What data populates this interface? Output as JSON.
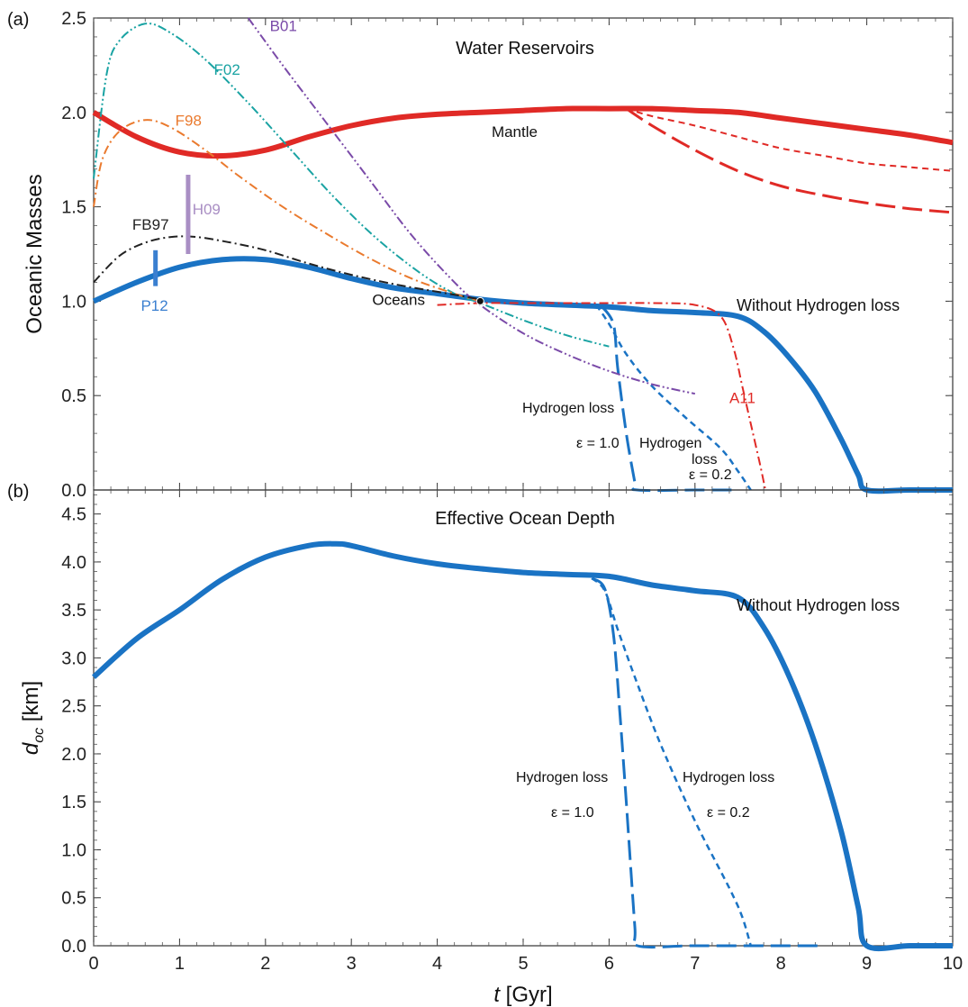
{
  "chart_data": [
    {
      "type": "line",
      "panel_label": "(a)",
      "title": "Water Reservoirs",
      "xlabel": "",
      "ylabel": "Oceanic Masses",
      "xlim": [
        0,
        10
      ],
      "ylim": [
        0,
        2.5
      ],
      "x_ticks": [
        "0",
        "1",
        "2",
        "3",
        "4",
        "5",
        "6",
        "7",
        "8",
        "9",
        "10"
      ],
      "y_ticks": [
        "0.0",
        "0.5",
        "1.0",
        "1.5",
        "2.0",
        "2.5"
      ],
      "grid": false,
      "series": [
        {
          "name": "Mantle",
          "color": "#e02a26",
          "style": "solid",
          "width": 6,
          "x": [
            0,
            0.5,
            1.0,
            1.5,
            2.0,
            2.5,
            3.0,
            3.5,
            4.0,
            4.5,
            5.0,
            5.5,
            6.0,
            6.5,
            7.0,
            7.5,
            8.0,
            8.5,
            9.0,
            9.5,
            10.0
          ],
          "y": [
            2.0,
            1.87,
            1.79,
            1.77,
            1.8,
            1.87,
            1.93,
            1.97,
            1.99,
            2.0,
            2.01,
            2.02,
            2.02,
            2.02,
            2.01,
            2.0,
            1.97,
            1.94,
            1.91,
            1.88,
            1.84
          ]
        },
        {
          "name": "",
          "color": "#e02a26",
          "style": "short-dash",
          "width": 2,
          "x": [
            6.2,
            6.5,
            7.0,
            7.5,
            8.0,
            8.5,
            9.0,
            9.5,
            10.0
          ],
          "y": [
            2.02,
            1.98,
            1.93,
            1.87,
            1.81,
            1.77,
            1.73,
            1.71,
            1.69
          ]
        },
        {
          "name": "",
          "color": "#e02a26",
          "style": "long-dash",
          "width": 3,
          "x": [
            6.2,
            6.5,
            7.0,
            7.5,
            8.0,
            8.5,
            9.0,
            9.5,
            10.0
          ],
          "y": [
            2.02,
            1.93,
            1.8,
            1.69,
            1.61,
            1.56,
            1.52,
            1.49,
            1.47
          ]
        },
        {
          "name": "Oceans",
          "color": "#1a73c4",
          "style": "solid",
          "width": 6,
          "x": [
            0,
            0.5,
            1.0,
            1.5,
            2.0,
            2.5,
            3.0,
            3.5,
            4.0,
            4.5,
            5.0,
            5.5,
            6.0,
            6.5,
            7.0,
            7.5,
            7.8,
            8.1,
            8.4,
            8.7,
            8.9,
            9.0,
            9.5,
            10.0
          ],
          "y": [
            1.0,
            1.1,
            1.18,
            1.22,
            1.22,
            1.18,
            1.12,
            1.07,
            1.04,
            1.01,
            0.99,
            0.98,
            0.97,
            0.95,
            0.94,
            0.92,
            0.84,
            0.7,
            0.52,
            0.27,
            0.08,
            0.0,
            0.0,
            0.0
          ]
        },
        {
          "name": "",
          "color": "#1a73c4",
          "style": "long-dash",
          "width": 3,
          "x": [
            5.9,
            6.05,
            6.1,
            6.2,
            6.3,
            6.33,
            7.0,
            7.5
          ],
          "y": [
            0.98,
            0.88,
            0.65,
            0.3,
            0.04,
            0.0,
            0.0,
            0.0
          ]
        },
        {
          "name": "",
          "color": "#1a73c4",
          "style": "short-dash",
          "width": 2.5,
          "x": [
            5.85,
            6.0,
            6.2,
            6.5,
            6.9,
            7.3,
            7.5,
            7.65
          ],
          "y": [
            0.98,
            0.88,
            0.72,
            0.55,
            0.38,
            0.22,
            0.1,
            0.0
          ]
        },
        {
          "name": "B01",
          "color": "#7a4aa8",
          "style": "dash-dot-dot",
          "width": 2,
          "x": [
            1.8,
            2.2,
            2.7,
            3.2,
            3.7,
            4.2,
            4.5,
            5.0,
            5.5,
            6.0,
            6.5,
            7.0
          ],
          "y": [
            2.5,
            2.25,
            1.95,
            1.65,
            1.35,
            1.1,
            0.98,
            0.83,
            0.72,
            0.63,
            0.56,
            0.51
          ]
        },
        {
          "name": "F02",
          "color": "#1aa3a3",
          "style": "dash-dot-dot",
          "width": 2,
          "x": [
            0,
            0.15,
            0.3,
            0.6,
            0.9,
            1.3,
            1.8,
            2.3,
            2.8,
            3.3,
            3.8,
            4.2,
            4.5,
            5.0,
            5.5,
            6.0
          ],
          "y": [
            1.65,
            2.2,
            2.38,
            2.47,
            2.42,
            2.28,
            2.05,
            1.8,
            1.55,
            1.33,
            1.15,
            1.04,
            0.99,
            0.9,
            0.82,
            0.76
          ]
        },
        {
          "name": "F98",
          "color": "#ea7a2e",
          "style": "dash-dot",
          "width": 2,
          "x": [
            0,
            0.1,
            0.3,
            0.6,
            0.9,
            1.3,
            1.7,
            2.2,
            2.7,
            3.2,
            3.7,
            4.2,
            4.5
          ],
          "y": [
            1.5,
            1.75,
            1.9,
            1.96,
            1.92,
            1.8,
            1.66,
            1.5,
            1.36,
            1.23,
            1.12,
            1.04,
            1.0
          ]
        },
        {
          "name": "FB97",
          "color": "#222222",
          "style": "dash-dot",
          "width": 2,
          "x": [
            0,
            0.3,
            0.6,
            0.9,
            1.2,
            1.6,
            2.0,
            2.5,
            3.0,
            3.5,
            4.0,
            4.5
          ],
          "y": [
            1.1,
            1.24,
            1.31,
            1.34,
            1.34,
            1.31,
            1.27,
            1.2,
            1.14,
            1.09,
            1.05,
            1.01
          ]
        },
        {
          "name": "A11",
          "color": "#e02a26",
          "style": "dash-dot",
          "width": 2,
          "x": [
            4.0,
            4.5,
            5.0,
            5.5,
            6.0,
            6.5,
            7.0,
            7.3,
            7.45,
            7.55,
            7.65,
            7.75,
            7.82
          ],
          "y": [
            0.98,
            0.99,
            0.99,
            0.99,
            0.99,
            0.99,
            0.98,
            0.92,
            0.75,
            0.55,
            0.35,
            0.15,
            0.0
          ]
        }
      ],
      "bars": [
        {
          "name": "H09",
          "color": "#a98ec4",
          "x": 1.1,
          "y_range": [
            1.25,
            1.67
          ]
        },
        {
          "name": "P12",
          "color": "#3a7fd0",
          "x": 0.72,
          "y_range": [
            1.08,
            1.27
          ]
        }
      ],
      "annotations": {
        "marker": {
          "x": 4.5,
          "y": 1.0
        },
        "without_h_loss": "Without Hydrogen loss",
        "hloss_left": "Hydrogen loss",
        "eps_left": "ε = 1.0",
        "hloss_right_1": "Hydrogen",
        "hloss_right_2": "loss",
        "eps_right": "ε = 0.2"
      }
    },
    {
      "type": "line",
      "panel_label": "(b)",
      "title": "Effective Ocean Depth",
      "xlabel": "t [Gyr]",
      "ylabel": "d_oc [km]",
      "xlim": [
        0,
        10
      ],
      "ylim": [
        0,
        4.75
      ],
      "x_ticks": [
        "0",
        "1",
        "2",
        "3",
        "4",
        "5",
        "6",
        "7",
        "8",
        "9",
        "10"
      ],
      "y_ticks": [
        "0.0",
        "0.5",
        "1.0",
        "1.5",
        "2.0",
        "2.5",
        "3.0",
        "3.5",
        "4.0",
        "4.5"
      ],
      "grid": false,
      "series": [
        {
          "name": "",
          "color": "#1a73c4",
          "style": "solid",
          "width": 6,
          "x": [
            0,
            0.5,
            1.0,
            1.5,
            2.0,
            2.5,
            2.8,
            3.0,
            3.5,
            4.0,
            4.5,
            5.0,
            5.5,
            6.0,
            6.5,
            7.0,
            7.5,
            7.8,
            8.1,
            8.4,
            8.7,
            8.9,
            9.0,
            9.5,
            10.0
          ],
          "y": [
            2.8,
            3.2,
            3.5,
            3.82,
            4.05,
            4.17,
            4.19,
            4.17,
            4.06,
            3.98,
            3.93,
            3.89,
            3.87,
            3.85,
            3.76,
            3.7,
            3.63,
            3.32,
            2.8,
            2.1,
            1.2,
            0.4,
            0.0,
            0.0,
            0.0
          ]
        },
        {
          "name": "",
          "color": "#1a73c4",
          "style": "long-dash",
          "width": 3,
          "x": [
            5.8,
            5.95,
            6.05,
            6.12,
            6.2,
            6.3,
            6.33,
            7.0,
            8.0,
            8.5
          ],
          "y": [
            3.83,
            3.72,
            3.25,
            2.5,
            1.5,
            0.2,
            0.0,
            0.0,
            0.0,
            0.0
          ]
        },
        {
          "name": "",
          "color": "#1a73c4",
          "style": "short-dash",
          "width": 2.5,
          "x": [
            5.8,
            5.95,
            6.1,
            6.3,
            6.6,
            7.0,
            7.4,
            7.55,
            7.65
          ],
          "y": [
            3.83,
            3.7,
            3.3,
            2.8,
            2.1,
            1.3,
            0.6,
            0.3,
            0.0
          ]
        }
      ],
      "annotations": {
        "without_h_loss": "Without Hydrogen loss",
        "hloss_left": "Hydrogen loss",
        "eps_left": "ε = 1.0",
        "hloss_right": "Hydrogen loss",
        "eps_right": "ε = 0.2"
      }
    }
  ]
}
